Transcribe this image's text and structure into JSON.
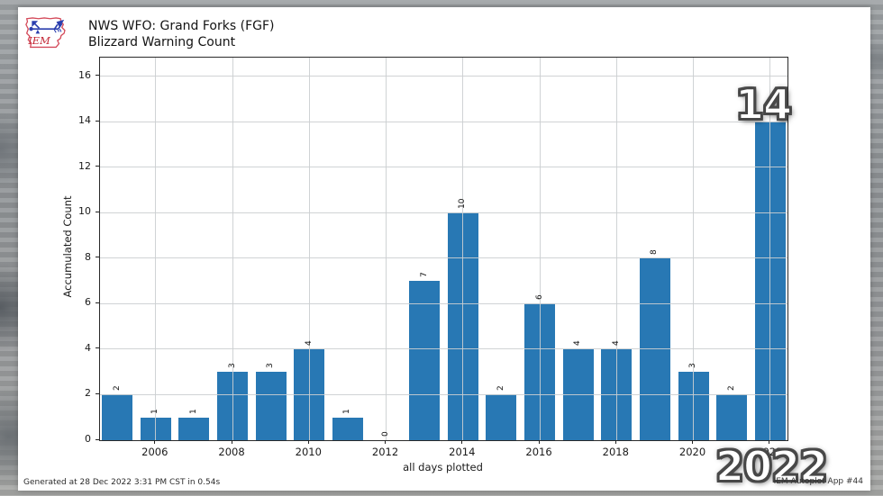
{
  "logo": {
    "text": "IEM",
    "outline_color": "#d44a5a",
    "glyph_color": "#2b3fae",
    "text_color": "#c22433"
  },
  "title": {
    "line1": "NWS WFO: Grand Forks (FGF)",
    "line2": "Blizzard Warning Count"
  },
  "chart_data": {
    "type": "bar",
    "title": "NWS WFO: Grand Forks (FGF) Blizzard Warning Count",
    "xlabel": "all days plotted",
    "ylabel": "Accumulated Count",
    "categories": [
      2005,
      2006,
      2007,
      2008,
      2009,
      2010,
      2011,
      2012,
      2013,
      2014,
      2015,
      2016,
      2017,
      2018,
      2019,
      2020,
      2021,
      2022
    ],
    "values": [
      2,
      1,
      1,
      3,
      3,
      4,
      1,
      0,
      7,
      10,
      2,
      6,
      4,
      4,
      8,
      3,
      2,
      14
    ],
    "x_ticks": [
      2006,
      2008,
      2010,
      2012,
      2014,
      2016,
      2018,
      2020,
      2022
    ],
    "y_ticks": [
      0,
      2,
      4,
      6,
      8,
      10,
      12,
      14,
      16
    ],
    "xlim": [
      2004.55,
      2022.45
    ],
    "ylim": [
      0,
      16.83
    ],
    "bar_color": "#2878b4",
    "grid": true,
    "legend": "none",
    "highlight": {
      "value": "14",
      "year": "2022"
    }
  },
  "footer": {
    "generated": "Generated at 28 Dec 2022 3:31 PM CST in 0.54s",
    "app": "IEM Autoplot App #44"
  }
}
